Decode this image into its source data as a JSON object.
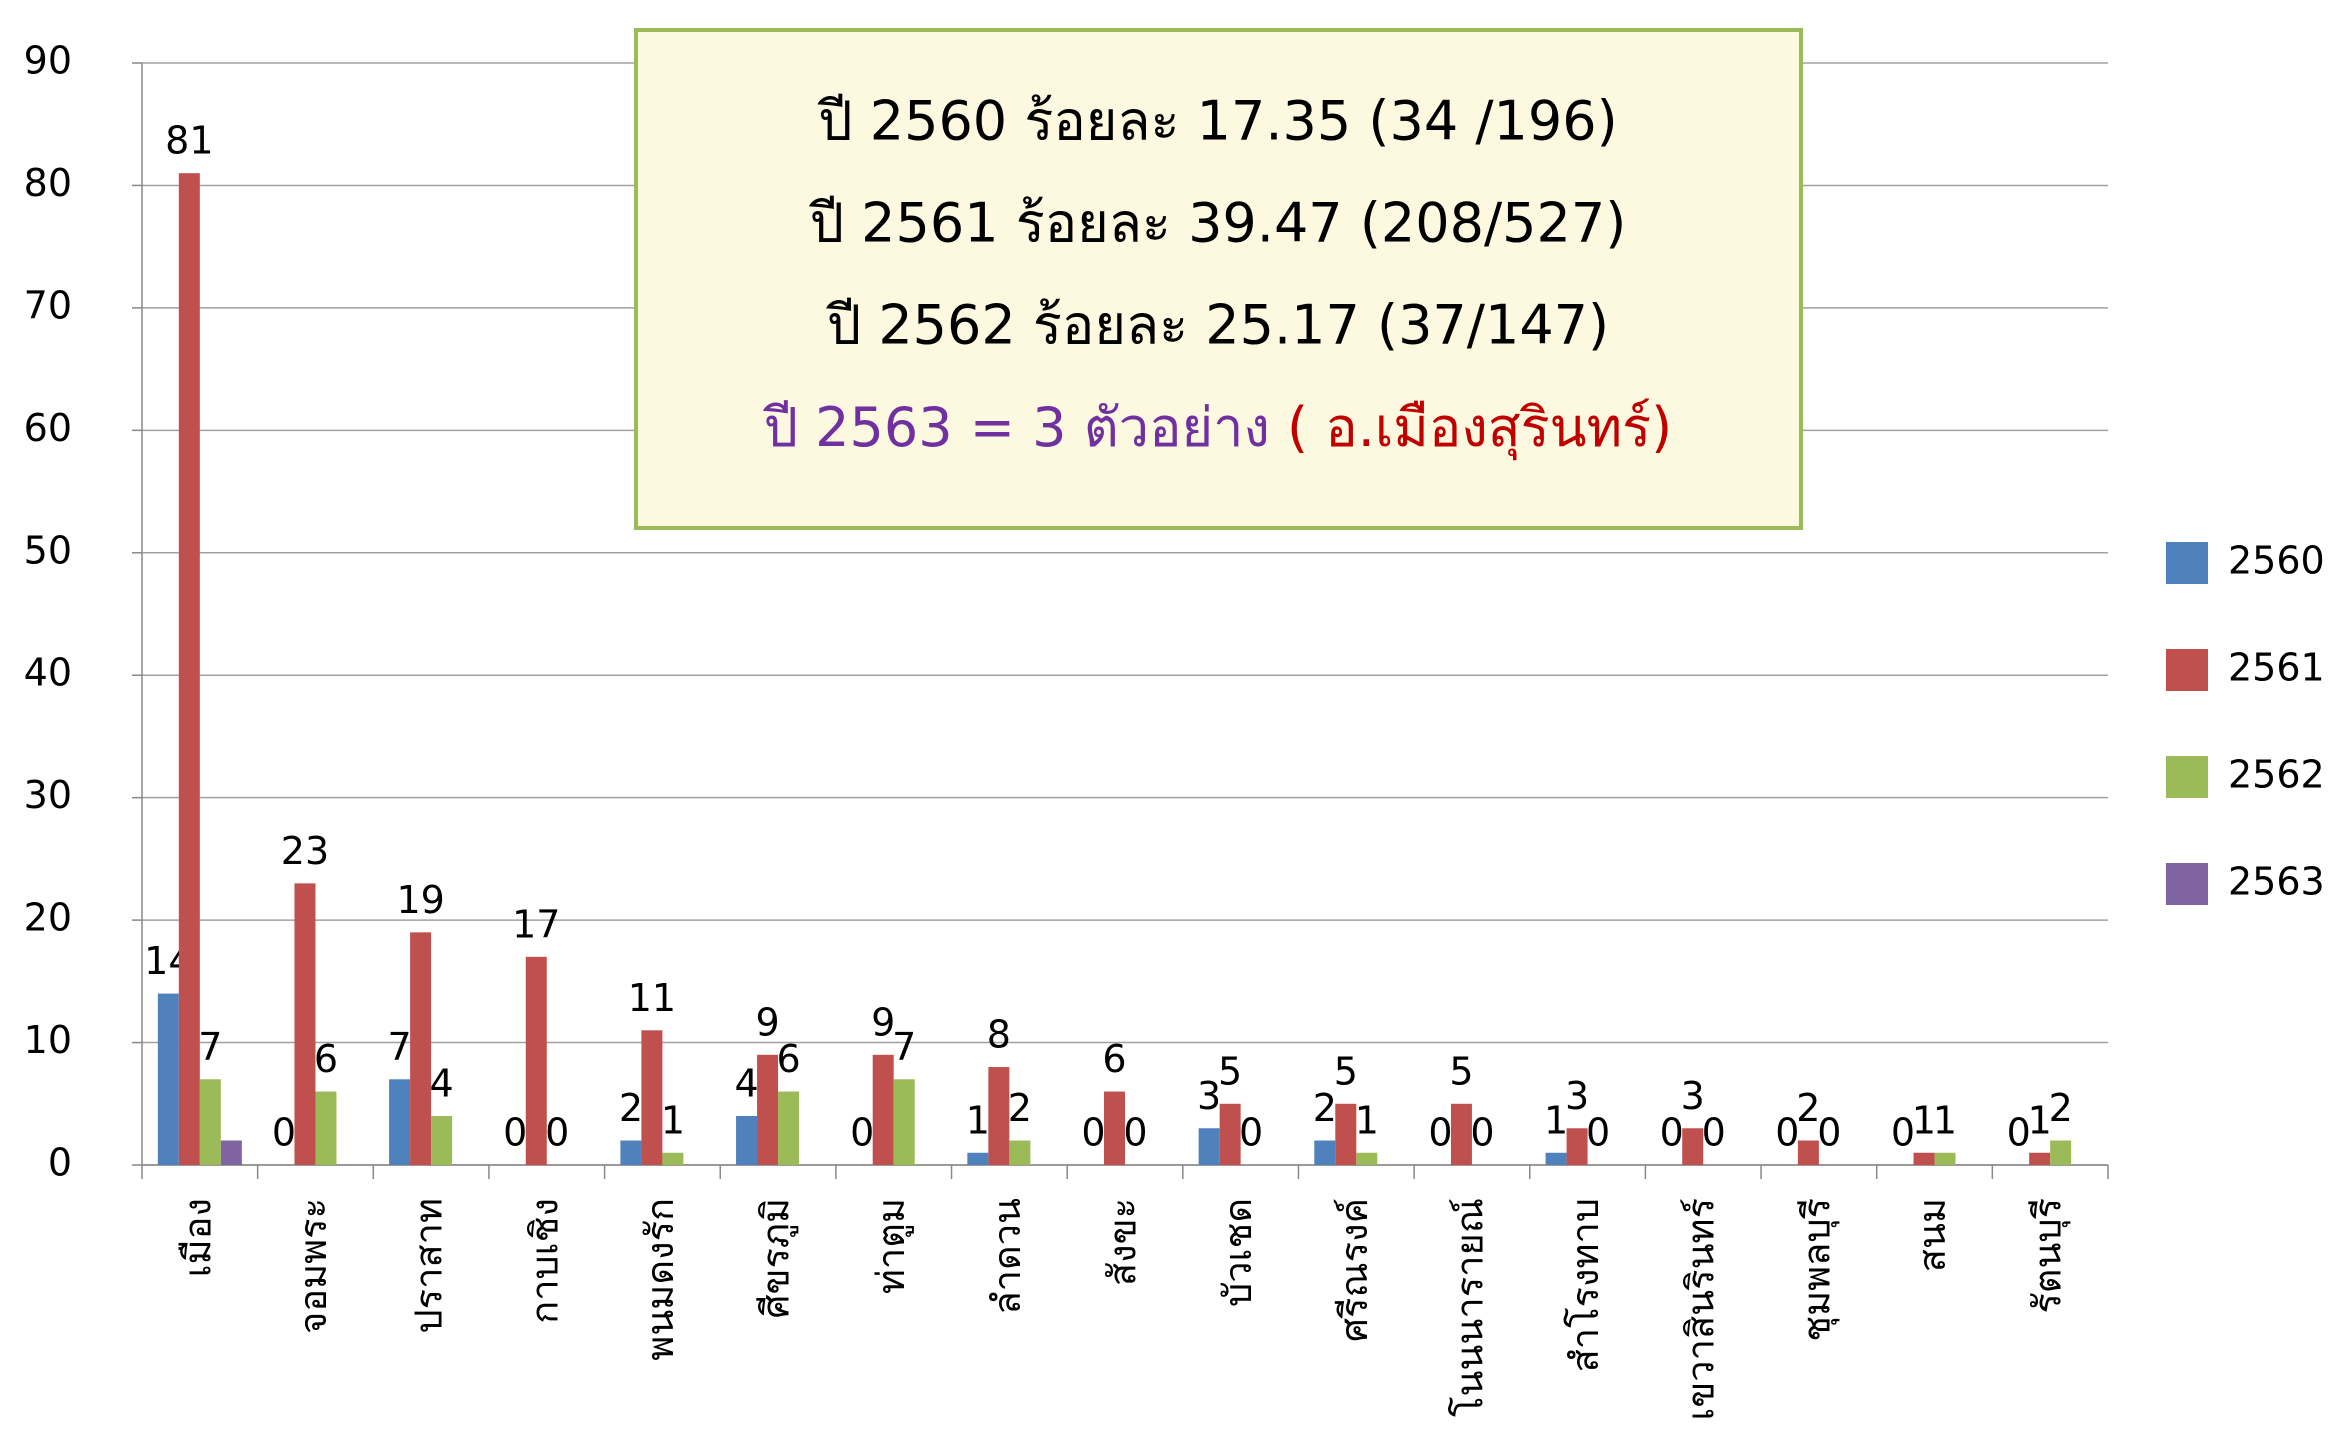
{
  "chart_data": {
    "type": "bar",
    "categories": [
      "เมือง",
      "จอมพระ",
      "ปราสาท",
      "กาบเชิง",
      "พนมดงรัก",
      "ศีขรภูมิ",
      "ท่าตูม",
      "ลำดวน",
      "สังขะ",
      "บัวเชด",
      "ศรีณรงค์",
      "โนนนารายณ์",
      "สำโรงทาบ",
      "เขวาสินรินทร์",
      "ชุมพลบุรี",
      "สนม",
      "รัตนบุรี"
    ],
    "series": [
      {
        "name": "2560",
        "color": "#4f81bd",
        "values": [
          14,
          0,
          7,
          0,
          2,
          4,
          0,
          1,
          0,
          3,
          2,
          0,
          1,
          0,
          0,
          0,
          0
        ]
      },
      {
        "name": "2561",
        "color": "#c0504d",
        "values": [
          81,
          23,
          19,
          17,
          11,
          9,
          9,
          8,
          6,
          5,
          5,
          5,
          3,
          3,
          2,
          1,
          1
        ]
      },
      {
        "name": "2562",
        "color": "#9bbb59",
        "values": [
          7,
          6,
          4,
          0,
          1,
          6,
          7,
          2,
          0,
          0,
          1,
          0,
          0,
          0,
          0,
          1,
          2
        ]
      },
      {
        "name": "2563",
        "color": "#8064a2",
        "labels": false,
        "values": [
          2,
          null,
          null,
          null,
          null,
          null,
          null,
          null,
          null,
          null,
          null,
          null,
          null,
          null,
          null,
          null,
          null
        ]
      }
    ],
    "ylim": [
      0,
      90
    ],
    "yticks": [
      0,
      10,
      20,
      30,
      40,
      50,
      60,
      70,
      80,
      90
    ],
    "grid": true,
    "legend": "right",
    "annotation": {
      "lines": [
        "ปี 2560  ร้อยละ  17.35 (34 /196)",
        "ปี 2561  ร้อยละ 39.47 (208/527)",
        "ปี 2562  ร้อยละ 25.17 (37/147)"
      ],
      "last_line": [
        {
          "text": "ปี 2563 = 3 ตัวอย่าง",
          "color": "#7030a0"
        },
        {
          "text": " ( อ.เมืองสุรินทร์)",
          "color": "#c00000"
        }
      ]
    }
  }
}
